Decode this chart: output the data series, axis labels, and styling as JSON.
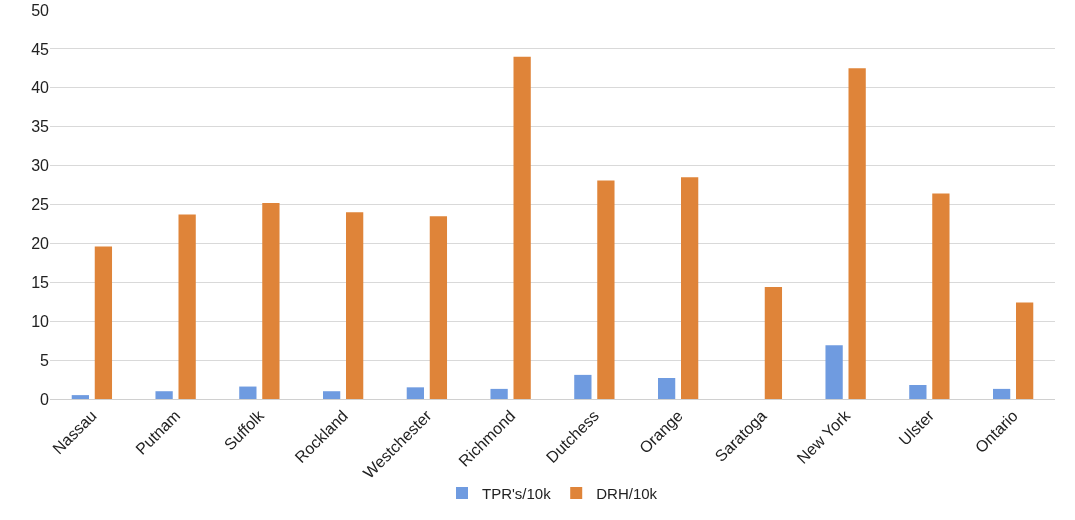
{
  "chart_data": {
    "type": "bar",
    "categories": [
      "Nassau",
      "Putnam",
      "Suffolk",
      "Rockland",
      "Westchester",
      "Richmond",
      "Dutchess",
      "Orange",
      "Saratoga",
      "New York",
      "Ulster",
      "Ontario"
    ],
    "series": [
      {
        "name": "TPR's/10k",
        "color": "#6f9be0",
        "values": [
          0.5,
          1.0,
          1.6,
          1.0,
          1.5,
          1.3,
          3.1,
          2.7,
          0,
          6.9,
          1.8,
          1.3
        ]
      },
      {
        "name": "DRH/10k",
        "color": "#df8439",
        "values": [
          19.6,
          23.7,
          25.2,
          24.0,
          23.5,
          44.0,
          28.1,
          28.5,
          14.4,
          42.5,
          26.4,
          12.4
        ]
      }
    ],
    "ylim": [
      0,
      50
    ],
    "yticks": [
      0,
      5,
      10,
      15,
      20,
      25,
      30,
      35,
      40,
      45,
      50
    ],
    "grid": "y",
    "legend": "bottom"
  }
}
